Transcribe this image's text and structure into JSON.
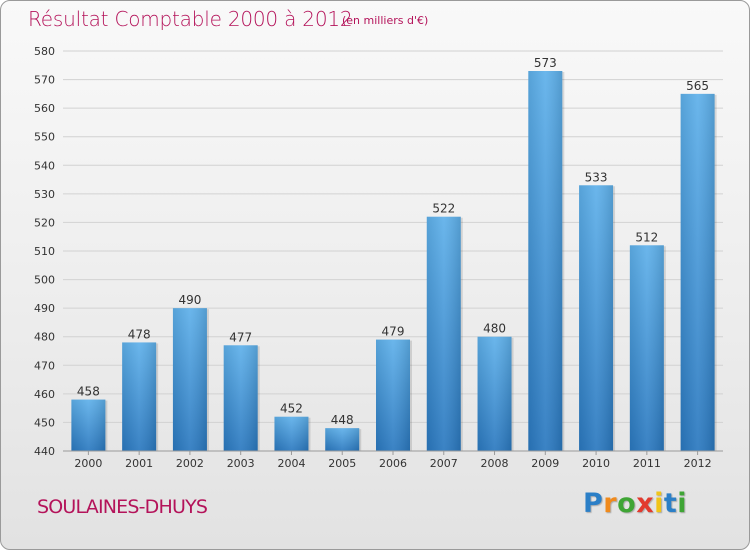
{
  "chart_data": {
    "type": "bar",
    "title": "Résultat Comptable 2000 à 2012",
    "subtitle": "(en milliers d'€)",
    "categories": [
      "2000",
      "2001",
      "2002",
      "2003",
      "2004",
      "2005",
      "2006",
      "2007",
      "2008",
      "2009",
      "2010",
      "2011",
      "2012"
    ],
    "values": [
      458,
      478,
      490,
      477,
      452,
      448,
      479,
      522,
      480,
      573,
      533,
      512,
      565
    ],
    "ylim": [
      440,
      580
    ],
    "yticks": [
      440,
      450,
      460,
      470,
      480,
      490,
      500,
      510,
      520,
      530,
      540,
      550,
      560,
      570,
      580
    ],
    "xlabel": "",
    "ylabel": "",
    "grid": true,
    "bar_color": "#3a93d6"
  },
  "footer": {
    "commune": "SOULAINES-DHUYS",
    "brand_letters": [
      {
        "char": "P",
        "color": "#2b7fc7"
      },
      {
        "char": "r",
        "color": "#f08a1c"
      },
      {
        "char": "o",
        "color": "#3fa535"
      },
      {
        "char": "x",
        "color": "#e23a2e"
      },
      {
        "char": "i",
        "color": "#f0c419"
      },
      {
        "char": "t",
        "color": "#2b7fc7"
      },
      {
        "char": "i",
        "color": "#3fa535"
      }
    ]
  }
}
